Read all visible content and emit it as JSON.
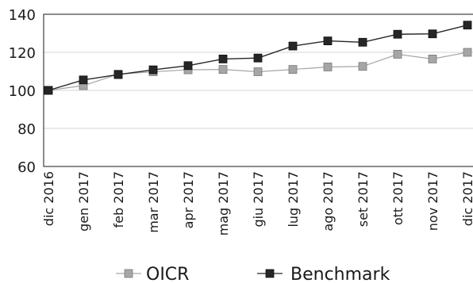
{
  "chart_data": {
    "type": "line",
    "title": "",
    "xlabel": "",
    "ylabel": "",
    "categories": [
      "dic 2016",
      "gen 2017",
      "feb 2017",
      "mar 2017",
      "apr 2017",
      "mag 2017",
      "giu 2017",
      "lug 2017",
      "ago 2017",
      "set 2017",
      "ott 2017",
      "nov 2017",
      "dic 2017"
    ],
    "ylim": [
      60,
      140
    ],
    "yticks": [
      "60",
      "80",
      "100",
      "120",
      "140"
    ],
    "grid": true,
    "legend_position": "bottom",
    "series": [
      {
        "name": "OICR",
        "color": "#a6a6a6",
        "marker": "square",
        "values": [
          100,
          102.5,
          108.5,
          109.8,
          110.8,
          111,
          109.8,
          111,
          112.3,
          112.6,
          119,
          116.5,
          120
        ]
      },
      {
        "name": "Benchmark",
        "color": "#262626",
        "marker": "square",
        "values": [
          100,
          105.5,
          108.3,
          110.8,
          113,
          116.5,
          117,
          123.3,
          126,
          125.3,
          129.5,
          129.7,
          134.3
        ]
      }
    ]
  }
}
